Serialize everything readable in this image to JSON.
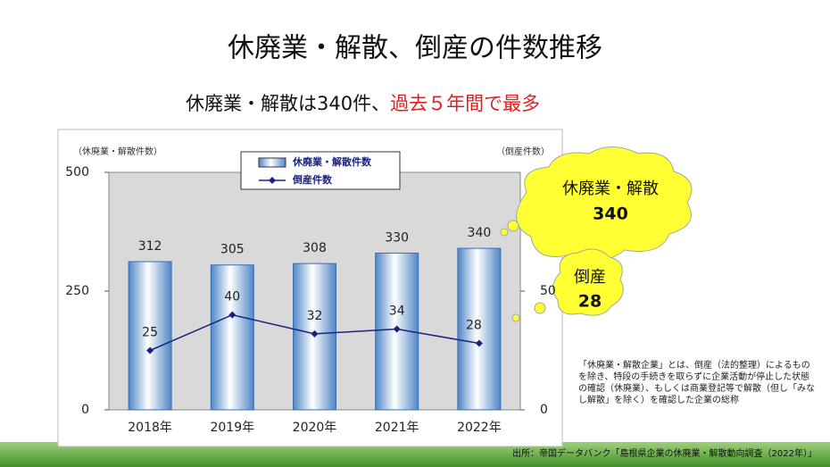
{
  "title": "休廃業・解散、倒産の件数推移",
  "subtitle": {
    "text": "休廃業・解散は340件、",
    "highlight": "過去５年間で最多"
  },
  "chart_data": {
    "type": "bar",
    "categories": [
      "2018年",
      "2019年",
      "2020年",
      "2021年",
      "2022年"
    ],
    "series": [
      {
        "name": "休廃業・解散件数",
        "type": "bar",
        "color": "#7fb2e8",
        "values": [
          312,
          305,
          308,
          330,
          340
        ]
      },
      {
        "name": "倒産件数",
        "type": "line",
        "axis": "y2",
        "color": "#1a237e",
        "values": [
          25,
          40,
          32,
          34,
          28
        ]
      }
    ],
    "ylabel": "（休廃業・解散件数）",
    "y2label": "（倒産件数）",
    "ylim": [
      0,
      500
    ],
    "yticks": [
      0,
      250,
      500
    ],
    "y2lim": [
      0,
      100
    ],
    "y2ticks": [
      0,
      50
    ],
    "grid": false
  },
  "callouts": [
    {
      "label": "休廃業・解散",
      "value": "340"
    },
    {
      "label": "倒産",
      "value": "28"
    }
  ],
  "note": "「休廃業・解散企業」とは、倒産（法的整理）によるものを除き、特段の手続きを取らずに企業活動が停止した状態の確認（休廃業）、もしくは商業登記等で解散（但し「みなし解散」を除く）を確認した企業の総称",
  "source": "出所：帝国データバンク「島根県企業の休廃業・解散動向調査（2022年）」"
}
